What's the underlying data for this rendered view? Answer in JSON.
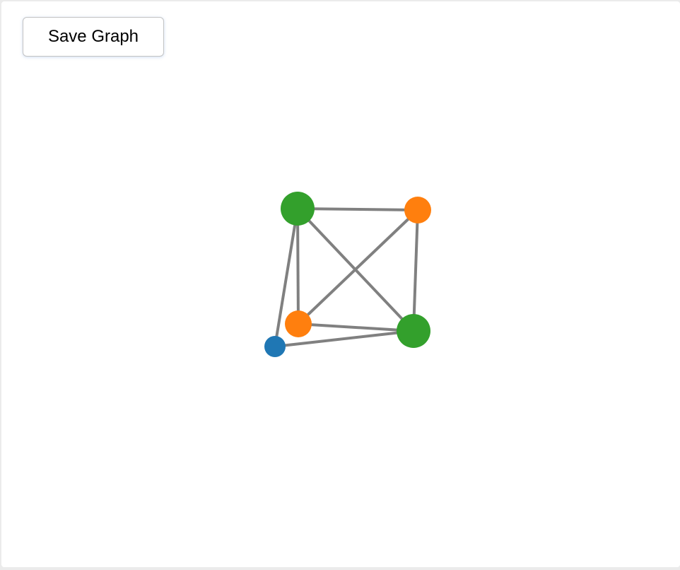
{
  "toolbar": {
    "save_label": "Save Graph"
  },
  "graph": {
    "edge_color": "#808080",
    "nodes": [
      {
        "id": "n1",
        "group": "green",
        "color": "#33a02c",
        "size": "large"
      },
      {
        "id": "n2",
        "group": "orange",
        "color": "#ff7f0e",
        "size": "medium"
      },
      {
        "id": "n3",
        "group": "orange",
        "color": "#ff7f0e",
        "size": "medium"
      },
      {
        "id": "n4",
        "group": "green",
        "color": "#33a02c",
        "size": "large"
      },
      {
        "id": "n5",
        "group": "blue",
        "color": "#1f77b4",
        "size": "small"
      }
    ],
    "edges": [
      [
        "n1",
        "n2"
      ],
      [
        "n1",
        "n3"
      ],
      [
        "n1",
        "n4"
      ],
      [
        "n1",
        "n5"
      ],
      [
        "n2",
        "n3"
      ],
      [
        "n2",
        "n4"
      ],
      [
        "n3",
        "n4"
      ],
      [
        "n4",
        "n5"
      ]
    ]
  }
}
